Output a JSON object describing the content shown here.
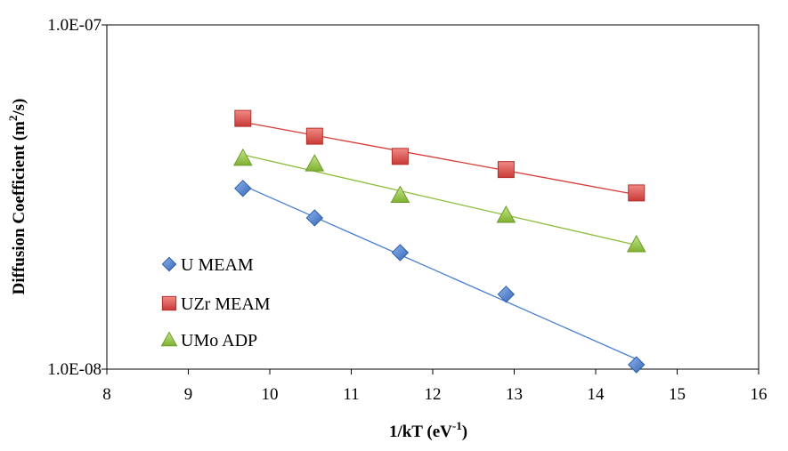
{
  "chart_data": {
    "type": "scatter",
    "title": "",
    "xlabel": "1/kT (eV",
    "xlabel_sup": "-1",
    "xlabel_tail": ")",
    "ylabel": "Diffusion Coefficient (m",
    "ylabel_sup": "2",
    "ylabel_tail": "/s)",
    "xlim": [
      8,
      16
    ],
    "ylim": [
      1e-08,
      1e-07
    ],
    "yscale": "log",
    "x_ticks": [
      "8",
      "9",
      "10",
      "11",
      "12",
      "13",
      "14",
      "15",
      "16"
    ],
    "y_ticks": [
      "1.0E-08",
      "1.0E-07"
    ],
    "grid": false,
    "trendlines": true,
    "legend_position": "lower-left",
    "series": [
      {
        "name": "U MEAM",
        "marker": "diamond",
        "color": "#4a7fd0",
        "line_color": "#4a7fd0",
        "x": [
          9.67,
          10.55,
          11.6,
          12.9,
          14.5
        ],
        "y": [
          3.35e-08,
          2.75e-08,
          2.18e-08,
          1.65e-08,
          1.03e-08
        ]
      },
      {
        "name": "UZr MEAM",
        "marker": "square",
        "color": "#e0504c",
        "line_color": "#d63a36",
        "x": [
          9.67,
          10.55,
          11.6,
          12.9,
          14.5
        ],
        "y": [
          5.35e-08,
          4.75e-08,
          4.15e-08,
          3.8e-08,
          3.25e-08
        ]
      },
      {
        "name": "UMo ADP",
        "marker": "triangle",
        "color": "#9ccc4c",
        "line_color": "#8cbc3a",
        "x": [
          9.67,
          10.55,
          11.6,
          12.9,
          14.5
        ],
        "y": [
          4.1e-08,
          3.95e-08,
          3.2e-08,
          2.8e-08,
          2.3e-08
        ]
      }
    ]
  }
}
